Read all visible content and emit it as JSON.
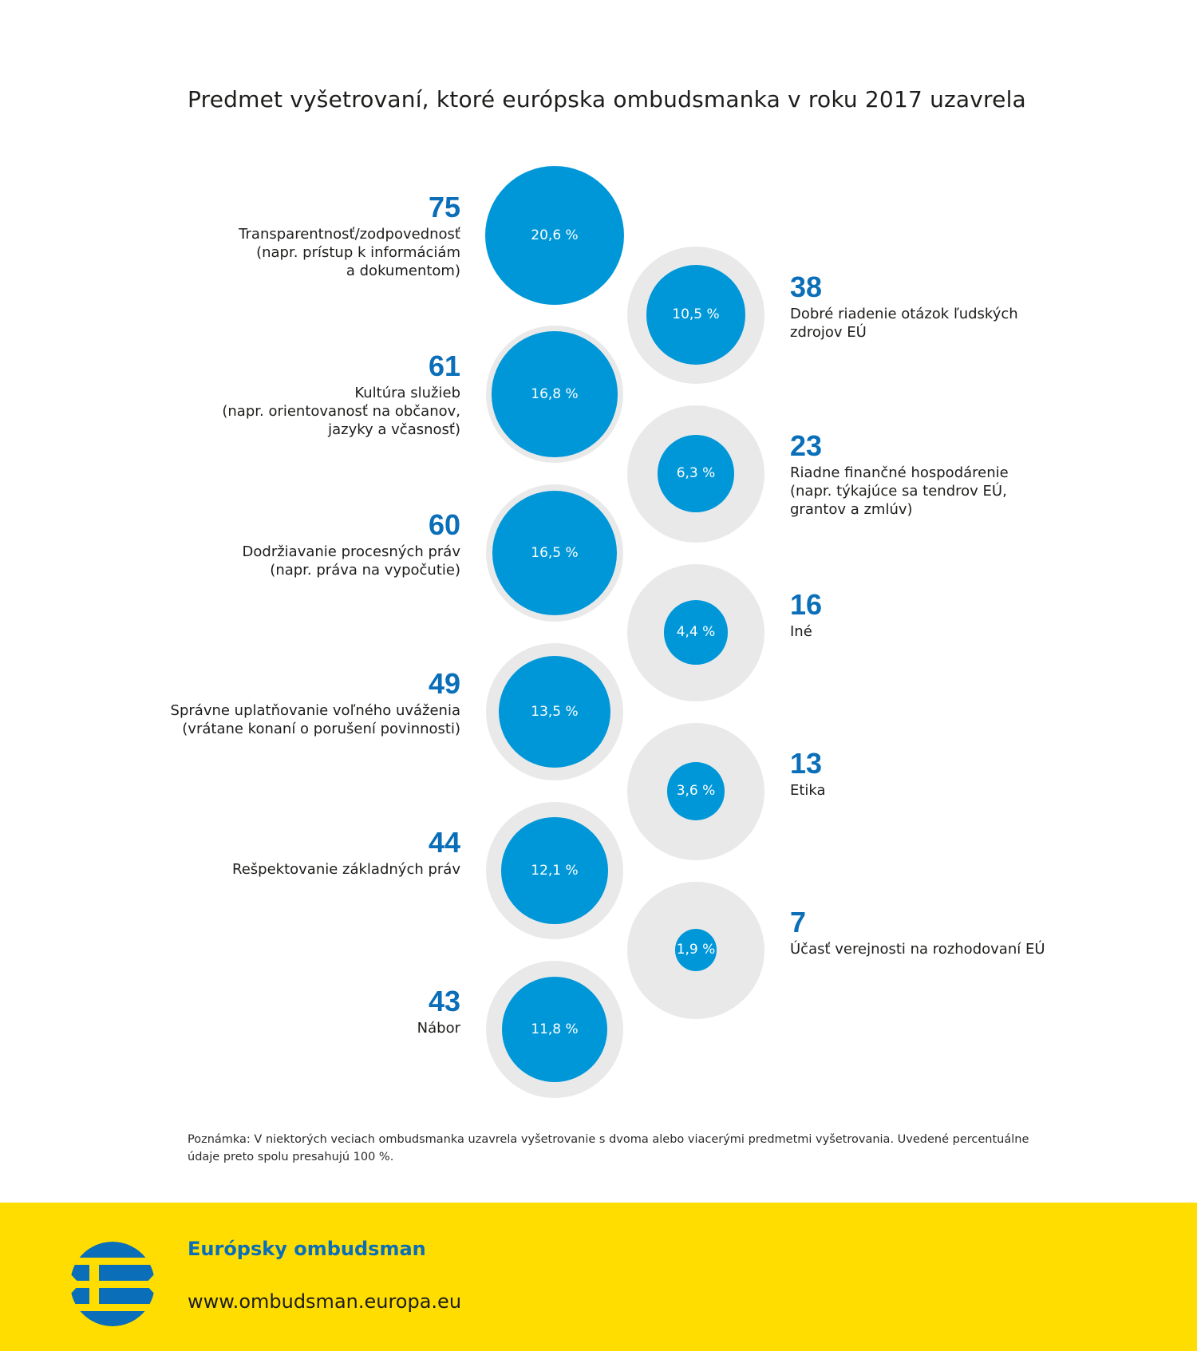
{
  "title": "Predmet vyšetrovaní, ktoré európska ombudsmanka v roku 2017 uzavrela",
  "chart_data": {
    "type": "bubble",
    "title": "Predmet vyšetrovaní, ktoré európska ombudsmanka v roku 2017 uzavrela",
    "items": [
      {
        "count": 75,
        "percent": 20.6,
        "percent_label": "20,6 %",
        "label": "Transparentnosť/zodpovednosť\n(napr. prístup k informáciám\na dokumentom)",
        "column": "left"
      },
      {
        "count": 38,
        "percent": 10.5,
        "percent_label": "10,5 %",
        "label": "Dobré riadenie otázok ľudských\nzdrojov EÚ",
        "column": "right"
      },
      {
        "count": 61,
        "percent": 16.8,
        "percent_label": "16,8 %",
        "label": "Kultúra služieb\n(napr. orientovanosť na občanov,\njazyky a včasnosť)",
        "column": "left"
      },
      {
        "count": 23,
        "percent": 6.3,
        "percent_label": "6,3 %",
        "label": "Riadne finančné hospodárenie\n(napr. týkajúce sa tendrov EÚ,\ngrantov a zmlúv)",
        "column": "right"
      },
      {
        "count": 60,
        "percent": 16.5,
        "percent_label": "16,5 %",
        "label": "Dodržiavanie procesných práv\n(napr. práva na vypočutie)",
        "column": "left"
      },
      {
        "count": 16,
        "percent": 4.4,
        "percent_label": "4,4 %",
        "label": "Iné",
        "column": "right"
      },
      {
        "count": 49,
        "percent": 13.5,
        "percent_label": "13,5 %",
        "label": "Správne uplatňovanie voľného uváženia\n(vrátane konaní o porušení povinnosti)",
        "column": "left"
      },
      {
        "count": 13,
        "percent": 3.6,
        "percent_label": "3,6 %",
        "label": "Etika",
        "column": "right"
      },
      {
        "count": 44,
        "percent": 12.1,
        "percent_label": "12,1 %",
        "label": "Rešpektovanie základných práv",
        "column": "left"
      },
      {
        "count": 7,
        "percent": 1.9,
        "percent_label": "1,9 %",
        "label": "Účasť verejnosti na rozhodovaní EÚ",
        "column": "right"
      },
      {
        "count": 43,
        "percent": 11.8,
        "percent_label": "11,8 %",
        "label": "Nábor",
        "column": "left"
      }
    ],
    "colors": {
      "bubble": "#0097d8",
      "bubble_background": "#e9e9ea",
      "count_text": "#0a6fb8"
    }
  },
  "note": "Poznámka: V niektorých veciach ombudsmanka uzavrela vyšetrovanie s dvoma alebo viacerými predmetmi vyšetrovania. Uvedené percentuálne údaje preto spolu presahujú 100 %.",
  "footer": {
    "name": "Európsky ombudsman",
    "url": "www.ombudsman.europa.eu",
    "logo_icon": "european-ombudsman-logo-icon",
    "background_color": "#ffdd00"
  }
}
